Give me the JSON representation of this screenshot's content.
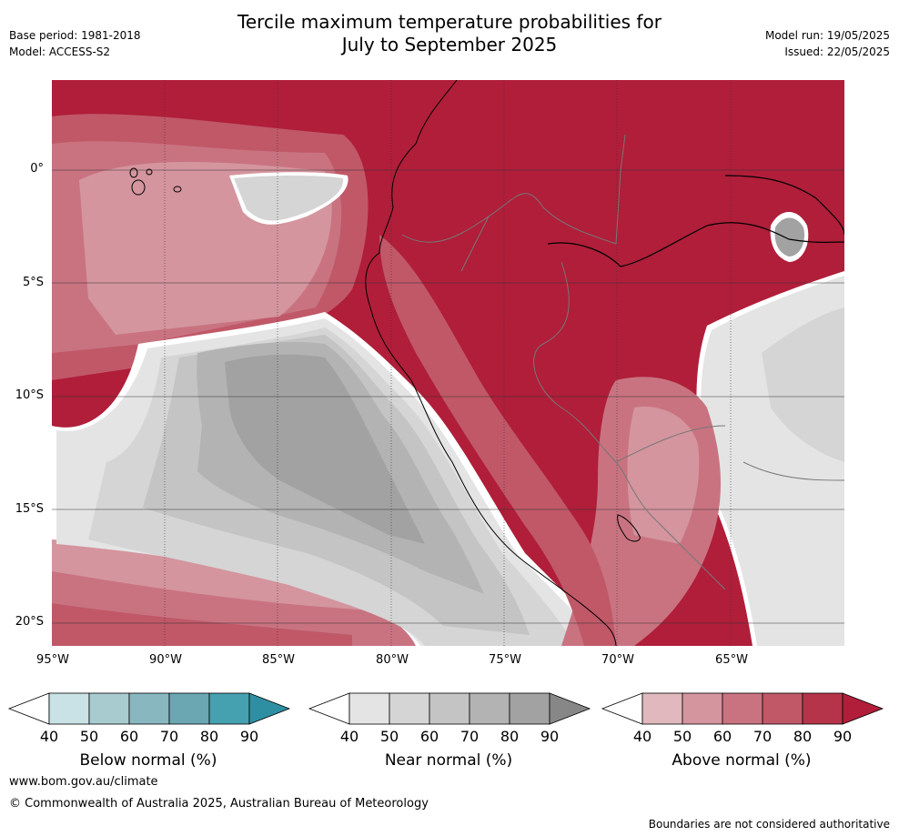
{
  "title_line1": "Tercile maximum temperature probabilities for",
  "title_line2": "July to September 2025",
  "base_period": "Base period: 1981-2018",
  "model": "Model: ACCESS-S2",
  "model_run": "Model run: 19/05/2025",
  "issued": "Issued: 22/05/2025",
  "lat_ticks": [
    "0°",
    "5°S",
    "10°S",
    "15°S",
    "20°S"
  ],
  "lon_ticks": [
    "95°W",
    "90°W",
    "85°W",
    "80°W",
    "75°W",
    "70°W",
    "65°W"
  ],
  "legends": [
    {
      "label": "Below normal (%)",
      "ticks": [
        "40",
        "50",
        "60",
        "70",
        "80",
        "90"
      ],
      "colors": [
        "#ffffff",
        "#c9e2e6",
        "#a8cbd0",
        "#88b7c0",
        "#6aa7b2",
        "#45a0b0",
        "#2e8fa3"
      ]
    },
    {
      "label": "Near normal (%)",
      "ticks": [
        "40",
        "50",
        "60",
        "70",
        "80",
        "90"
      ],
      "colors": [
        "#ffffff",
        "#e4e4e4",
        "#d5d5d5",
        "#c4c4c4",
        "#b3b3b3",
        "#a2a2a2",
        "#878787"
      ]
    },
    {
      "label": "Above normal (%)",
      "ticks": [
        "40",
        "50",
        "60",
        "70",
        "80",
        "90"
      ],
      "colors": [
        "#ffffff",
        "#e0b8be",
        "#d4959e",
        "#c97381",
        "#c05868",
        "#b5344a",
        "#b01e3a"
      ]
    }
  ],
  "website": "www.bom.gov.au/climate",
  "copyright": "© Commonwealth of Australia 2025, Australian Bureau of Meteorology",
  "disclaimer": "Boundaries are not considered authoritative"
}
